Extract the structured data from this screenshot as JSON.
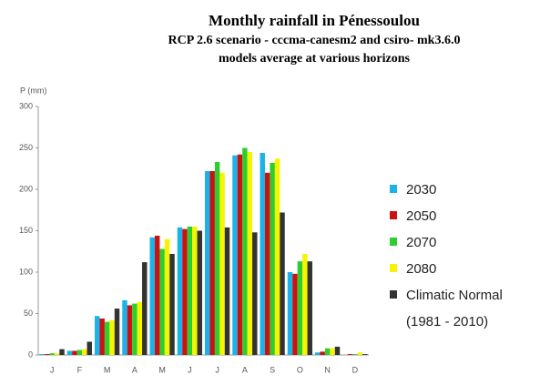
{
  "chart_data": {
    "type": "bar",
    "title": "Monthly rainfall in Pénessoulou",
    "subtitle": [
      "RCP 2.6 scenario - cccma-canesm2 and csiro- mk3.6.0",
      "models average at various horizons"
    ],
    "y_label": "P (mm)",
    "categories": [
      "J",
      "F",
      "M",
      "A",
      "M",
      "J",
      "J",
      "A",
      "S",
      "O",
      "N",
      "D"
    ],
    "series": [
      {
        "name": "2030",
        "color": "#1ab2e8",
        "values": [
          1,
          5,
          47,
          66,
          142,
          154,
          222,
          241,
          244,
          100,
          3,
          0
        ]
      },
      {
        "name": "2050",
        "color": "#cc1111",
        "values": [
          1,
          5,
          44,
          60,
          144,
          152,
          222,
          242,
          220,
          98,
          4,
          1
        ]
      },
      {
        "name": "2070",
        "color": "#2ecc2e",
        "values": [
          2,
          6,
          40,
          62,
          128,
          155,
          233,
          250,
          232,
          113,
          8,
          1
        ]
      },
      {
        "name": "2080",
        "color": "#f5f500",
        "values": [
          2,
          7,
          42,
          64,
          140,
          155,
          220,
          245,
          237,
          122,
          8,
          3
        ]
      },
      {
        "name": "Climatic Normal (1981 - 2010)",
        "color": "#333333",
        "values": [
          7,
          16,
          56,
          112,
          122,
          150,
          154,
          148,
          172,
          113,
          10,
          1
        ]
      }
    ],
    "ylim": [
      0,
      300
    ],
    "yticks": [
      0,
      50,
      100,
      150,
      200,
      250,
      300
    ],
    "grid": false
  }
}
